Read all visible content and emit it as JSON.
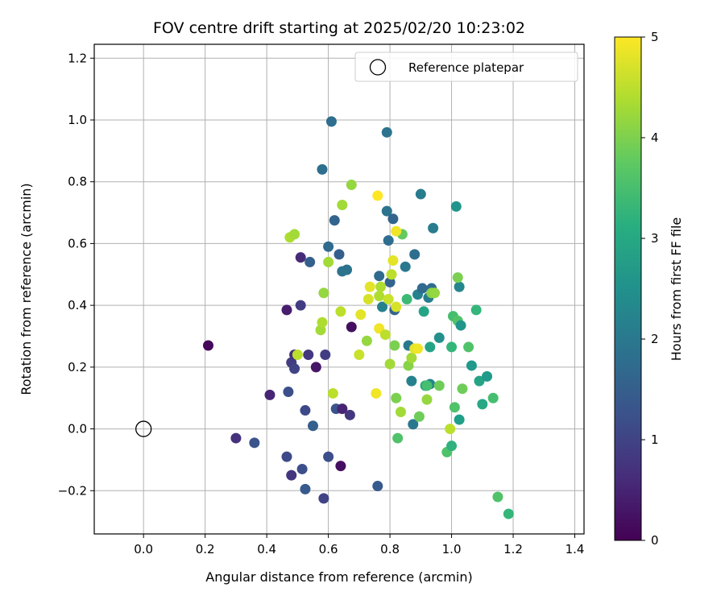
{
  "chart_data": {
    "type": "scatter",
    "title": "FOV centre drift starting at 2025/02/20 10:23:02",
    "xlabel": "Angular distance from reference (arcmin)",
    "ylabel": "Rotation from reference (arcmin)",
    "xlim": [
      -0.16,
      1.43
    ],
    "ylim": [
      -0.34,
      1.245
    ],
    "xticks": [
      0.0,
      0.2,
      0.4,
      0.6,
      0.8,
      1.0,
      1.2,
      1.4
    ],
    "xtick_labels": [
      "0.0",
      "0.2",
      "0.4",
      "0.6",
      "0.8",
      "1.0",
      "1.2",
      "1.4"
    ],
    "yticks": [
      -0.2,
      0.0,
      0.2,
      0.4,
      0.6,
      0.8,
      1.0,
      1.2
    ],
    "ytick_labels": [
      "−0.2",
      "0.0",
      "0.2",
      "0.4",
      "0.6",
      "0.8",
      "1.0",
      "1.2"
    ],
    "grid": true,
    "colormap": "viridis",
    "colorbar": {
      "label": "Hours from first FF file",
      "range": [
        0,
        5
      ],
      "ticks": [
        0,
        1,
        2,
        3,
        4,
        5
      ],
      "tick_labels": [
        "0",
        "1",
        "2",
        "3",
        "4",
        "5"
      ]
    },
    "legend": {
      "placement": "top-right",
      "label": "Reference platepar"
    },
    "reference_point": {
      "x": 0.0,
      "y": 0.0
    },
    "points": [
      {
        "x": 0.21,
        "y": 0.27,
        "hours": 0.1
      },
      {
        "x": 0.3,
        "y": -0.03,
        "hours": 0.7
      },
      {
        "x": 0.36,
        "y": -0.045,
        "hours": 1.3
      },
      {
        "x": 0.41,
        "y": 0.11,
        "hours": 0.5
      },
      {
        "x": 0.465,
        "y": 0.385,
        "hours": 0.4
      },
      {
        "x": 0.465,
        "y": -0.09,
        "hours": 1.1
      },
      {
        "x": 0.47,
        "y": 0.12,
        "hours": 1.2
      },
      {
        "x": 0.48,
        "y": 0.215,
        "hours": 0.9
      },
      {
        "x": 0.48,
        "y": -0.15,
        "hours": 0.8
      },
      {
        "x": 0.49,
        "y": 0.24,
        "hours": 0.7
      },
      {
        "x": 0.49,
        "y": 0.195,
        "hours": 1.0
      },
      {
        "x": 0.51,
        "y": 0.555,
        "hours": 0.6
      },
      {
        "x": 0.51,
        "y": 0.4,
        "hours": 0.9
      },
      {
        "x": 0.515,
        "y": -0.13,
        "hours": 1.2
      },
      {
        "x": 0.525,
        "y": 0.06,
        "hours": 1.1
      },
      {
        "x": 0.525,
        "y": -0.195,
        "hours": 1.4
      },
      {
        "x": 0.535,
        "y": 0.24,
        "hours": 0.8
      },
      {
        "x": 0.54,
        "y": 0.54,
        "hours": 1.5
      },
      {
        "x": 0.55,
        "y": 0.01,
        "hours": 1.5
      },
      {
        "x": 0.56,
        "y": 0.2,
        "hours": 0.3
      },
      {
        "x": 0.58,
        "y": 0.84,
        "hours": 1.8
      },
      {
        "x": 0.585,
        "y": -0.225,
        "hours": 1.0
      },
      {
        "x": 0.59,
        "y": 0.24,
        "hours": 0.9
      },
      {
        "x": 0.6,
        "y": 0.59,
        "hours": 1.7
      },
      {
        "x": 0.6,
        "y": -0.09,
        "hours": 1.2
      },
      {
        "x": 0.61,
        "y": 0.995,
        "hours": 1.8
      },
      {
        "x": 0.62,
        "y": 0.675,
        "hours": 1.6
      },
      {
        "x": 0.625,
        "y": 0.065,
        "hours": 1.3
      },
      {
        "x": 0.635,
        "y": 0.565,
        "hours": 1.5
      },
      {
        "x": 0.64,
        "y": -0.12,
        "hours": 0.2
      },
      {
        "x": 0.645,
        "y": 0.065,
        "hours": 0.5
      },
      {
        "x": 0.645,
        "y": 0.51,
        "hours": 1.9
      },
      {
        "x": 0.66,
        "y": 0.515,
        "hours": 1.9
      },
      {
        "x": 0.67,
        "y": 0.045,
        "hours": 0.8
      },
      {
        "x": 0.675,
        "y": 0.33,
        "hours": 0.2
      },
      {
        "x": 0.76,
        "y": -0.185,
        "hours": 1.4
      },
      {
        "x": 0.765,
        "y": 0.495,
        "hours": 1.7
      },
      {
        "x": 0.775,
        "y": 0.395,
        "hours": 2.2
      },
      {
        "x": 0.79,
        "y": 0.705,
        "hours": 1.9
      },
      {
        "x": 0.79,
        "y": 0.96,
        "hours": 1.9
      },
      {
        "x": 0.795,
        "y": 0.61,
        "hours": 1.8
      },
      {
        "x": 0.8,
        "y": 0.475,
        "hours": 1.6
      },
      {
        "x": 0.81,
        "y": 0.68,
        "hours": 1.6
      },
      {
        "x": 0.815,
        "y": 0.385,
        "hours": 1.6
      },
      {
        "x": 0.84,
        "y": 0.63,
        "hours": 3.8
      },
      {
        "x": 0.85,
        "y": 0.525,
        "hours": 2.0
      },
      {
        "x": 0.855,
        "y": 0.42,
        "hours": 3.4
      },
      {
        "x": 0.86,
        "y": 0.27,
        "hours": 2.0
      },
      {
        "x": 0.87,
        "y": 0.155,
        "hours": 2.2
      },
      {
        "x": 0.875,
        "y": 0.015,
        "hours": 2.0
      },
      {
        "x": 0.88,
        "y": 0.565,
        "hours": 1.8
      },
      {
        "x": 0.89,
        "y": 0.435,
        "hours": 2.2
      },
      {
        "x": 0.9,
        "y": 0.76,
        "hours": 2.1
      },
      {
        "x": 0.905,
        "y": 0.455,
        "hours": 1.7
      },
      {
        "x": 0.91,
        "y": 0.38,
        "hours": 2.9
      },
      {
        "x": 0.915,
        "y": 0.14,
        "hours": 2.9
      },
      {
        "x": 0.925,
        "y": 0.425,
        "hours": 2.1
      },
      {
        "x": 0.93,
        "y": 0.265,
        "hours": 2.9
      },
      {
        "x": 0.93,
        "y": 0.145,
        "hours": 2.3
      },
      {
        "x": 0.935,
        "y": 0.455,
        "hours": 1.7
      },
      {
        "x": 0.94,
        "y": 0.65,
        "hours": 2.1
      },
      {
        "x": 0.96,
        "y": 0.295,
        "hours": 2.5
      },
      {
        "x": 0.985,
        "y": -0.075,
        "hours": 3.6
      },
      {
        "x": 1.0,
        "y": -0.055,
        "hours": 3.2
      },
      {
        "x": 1.0,
        "y": 0.265,
        "hours": 3.3
      },
      {
        "x": 1.005,
        "y": 0.365,
        "hours": 3.5
      },
      {
        "x": 1.01,
        "y": 0.07,
        "hours": 3.6
      },
      {
        "x": 1.015,
        "y": 0.72,
        "hours": 2.6
      },
      {
        "x": 1.02,
        "y": 0.35,
        "hours": 3.6
      },
      {
        "x": 1.025,
        "y": 0.03,
        "hours": 2.8
      },
      {
        "x": 1.025,
        "y": 0.46,
        "hours": 2.3
      },
      {
        "x": 1.03,
        "y": 0.335,
        "hours": 2.6
      },
      {
        "x": 1.035,
        "y": 0.13,
        "hours": 3.9
      },
      {
        "x": 1.055,
        "y": 0.265,
        "hours": 3.6
      },
      {
        "x": 1.065,
        "y": 0.205,
        "hours": 2.7
      },
      {
        "x": 1.08,
        "y": 0.385,
        "hours": 3.3
      },
      {
        "x": 1.09,
        "y": 0.155,
        "hours": 2.9
      },
      {
        "x": 1.1,
        "y": 0.08,
        "hours": 3.0
      },
      {
        "x": 1.115,
        "y": 0.17,
        "hours": 2.7
      },
      {
        "x": 1.135,
        "y": 0.1,
        "hours": 3.5
      },
      {
        "x": 1.15,
        "y": -0.22,
        "hours": 3.6
      },
      {
        "x": 1.185,
        "y": -0.275,
        "hours": 3.3
      },
      {
        "x": 0.475,
        "y": 0.62,
        "hours": 4.4
      },
      {
        "x": 0.49,
        "y": 0.63,
        "hours": 4.3
      },
      {
        "x": 0.5,
        "y": 0.24,
        "hours": 4.5
      },
      {
        "x": 0.575,
        "y": 0.32,
        "hours": 4.3
      },
      {
        "x": 0.58,
        "y": 0.345,
        "hours": 4.4
      },
      {
        "x": 0.585,
        "y": 0.44,
        "hours": 4.2
      },
      {
        "x": 0.6,
        "y": 0.54,
        "hours": 4.3
      },
      {
        "x": 0.615,
        "y": 0.115,
        "hours": 4.5
      },
      {
        "x": 0.64,
        "y": 0.38,
        "hours": 4.5
      },
      {
        "x": 0.645,
        "y": 0.725,
        "hours": 4.3
      },
      {
        "x": 0.675,
        "y": 0.79,
        "hours": 4.2
      },
      {
        "x": 0.7,
        "y": 0.24,
        "hours": 4.6
      },
      {
        "x": 0.705,
        "y": 0.37,
        "hours": 4.8
      },
      {
        "x": 0.725,
        "y": 0.285,
        "hours": 4.2
      },
      {
        "x": 0.73,
        "y": 0.42,
        "hours": 4.7
      },
      {
        "x": 0.735,
        "y": 0.46,
        "hours": 4.8
      },
      {
        "x": 0.755,
        "y": 0.115,
        "hours": 4.9
      },
      {
        "x": 0.76,
        "y": 0.755,
        "hours": 5.0
      },
      {
        "x": 0.765,
        "y": 0.325,
        "hours": 4.9
      },
      {
        "x": 0.765,
        "y": 0.43,
        "hours": 4.4
      },
      {
        "x": 0.77,
        "y": 0.46,
        "hours": 4.4
      },
      {
        "x": 0.785,
        "y": 0.305,
        "hours": 4.5
      },
      {
        "x": 0.795,
        "y": 0.42,
        "hours": 4.6
      },
      {
        "x": 0.8,
        "y": 0.21,
        "hours": 4.3
      },
      {
        "x": 0.805,
        "y": 0.5,
        "hours": 4.5
      },
      {
        "x": 0.81,
        "y": 0.545,
        "hours": 4.8
      },
      {
        "x": 0.815,
        "y": 0.27,
        "hours": 4.0
      },
      {
        "x": 0.82,
        "y": 0.64,
        "hours": 4.9
      },
      {
        "x": 0.82,
        "y": 0.395,
        "hours": 4.7
      },
      {
        "x": 0.82,
        "y": 0.1,
        "hours": 4.0
      },
      {
        "x": 0.825,
        "y": -0.03,
        "hours": 3.6
      },
      {
        "x": 0.835,
        "y": 0.055,
        "hours": 4.3
      },
      {
        "x": 0.86,
        "y": 0.205,
        "hours": 4.1
      },
      {
        "x": 0.87,
        "y": 0.23,
        "hours": 4.3
      },
      {
        "x": 0.88,
        "y": 0.26,
        "hours": 4.8
      },
      {
        "x": 0.89,
        "y": 0.26,
        "hours": 4.9
      },
      {
        "x": 0.895,
        "y": 0.04,
        "hours": 3.9
      },
      {
        "x": 0.92,
        "y": 0.095,
        "hours": 4.2
      },
      {
        "x": 0.935,
        "y": 0.44,
        "hours": 4.1
      },
      {
        "x": 0.945,
        "y": 0.44,
        "hours": 4.2
      },
      {
        "x": 0.96,
        "y": 0.14,
        "hours": 3.9
      },
      {
        "x": 0.995,
        "y": 0.0,
        "hours": 4.5
      },
      {
        "x": 1.02,
        "y": 0.49,
        "hours": 4.0
      },
      {
        "x": 0.92,
        "y": 0.14,
        "hours": 3.5
      }
    ]
  }
}
